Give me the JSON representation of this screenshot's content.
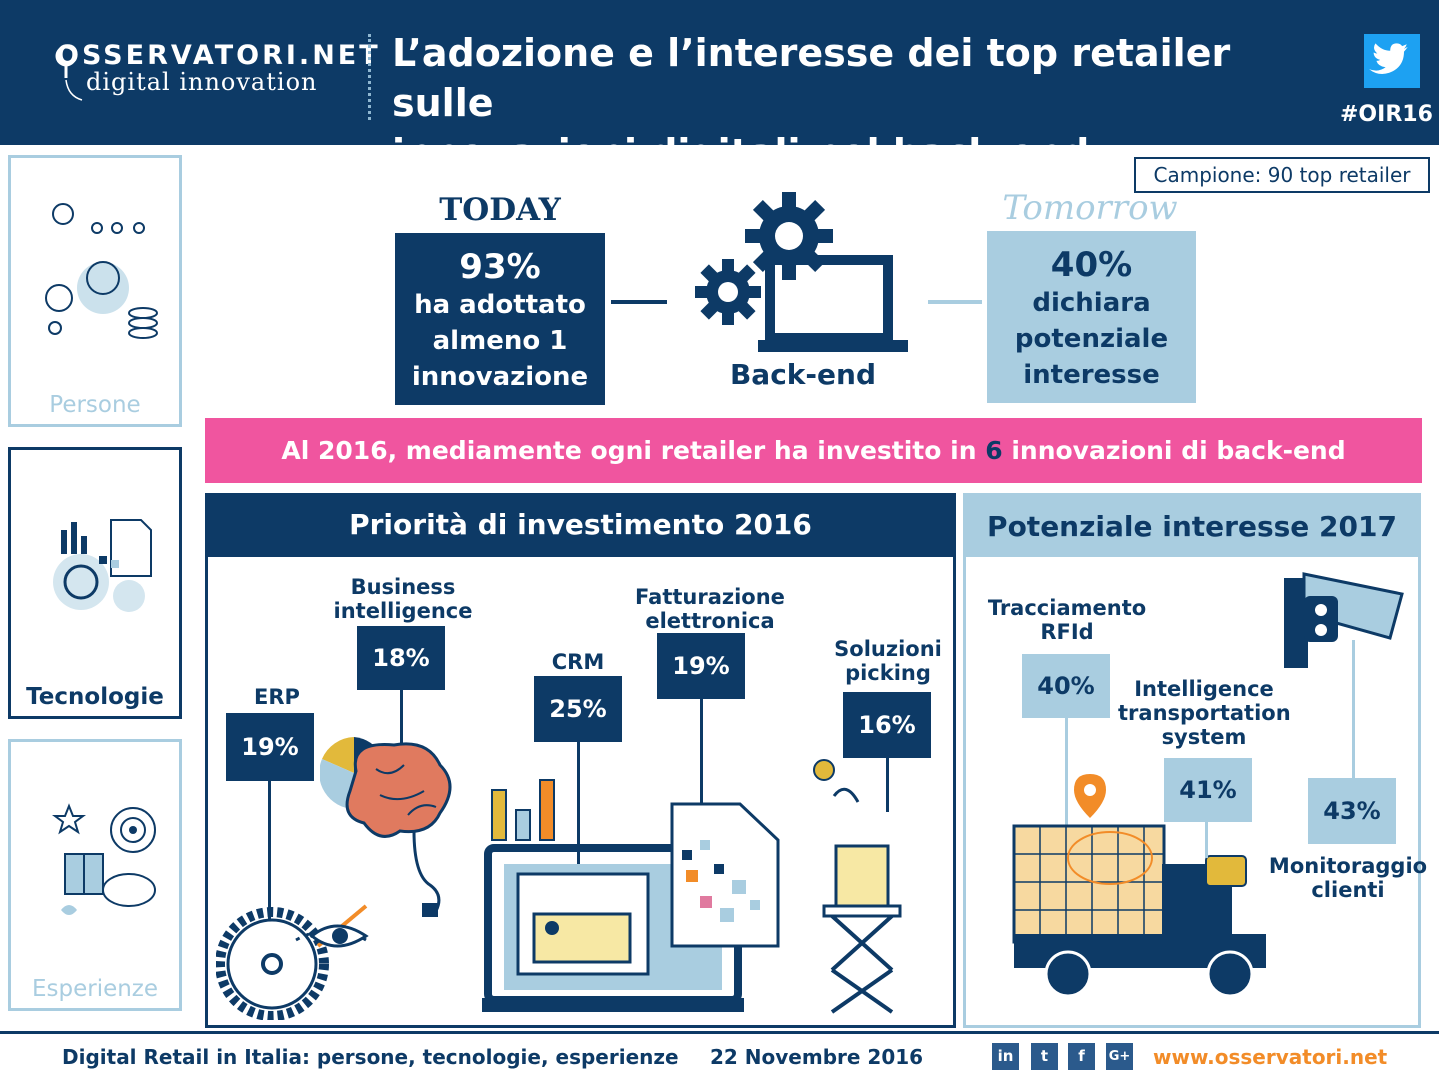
{
  "header": {
    "logo_main": "OSSERVATORI.NET",
    "logo_sub": "digital innovation",
    "title_line1": "L’adozione e l’interesse dei top retailer sulle",
    "title_line2": "innovazioni digitali nel back-end",
    "hashtag": "#OIR16"
  },
  "sidebar": {
    "items": [
      {
        "label": "Persone",
        "icon": "people-icon"
      },
      {
        "label": "Tecnologie",
        "icon": "technology-icon"
      },
      {
        "label": "Esperienze",
        "icon": "experiences-icon"
      }
    ]
  },
  "sample": "Campione: 90 top retailer",
  "today": {
    "title": "TODAY",
    "value": "93%",
    "line1": "ha adottato",
    "line2": "almeno 1",
    "line3": "innovazione"
  },
  "center": {
    "label": "Back-end"
  },
  "tomorrow": {
    "title": "Tomorrow",
    "value": "40%",
    "line1": "dichiara",
    "line2": "potenziale",
    "line3": "interesse"
  },
  "banner": {
    "before": "Al 2016, mediamente ogni retailer ha investito in ",
    "number": "6",
    "after": " innovazioni di back-end"
  },
  "priority": {
    "title": "Priorità di investimento 2016",
    "items": [
      {
        "label": "ERP",
        "value": "19%"
      },
      {
        "label_line1": "Business",
        "label_line2": "intelligence",
        "value": "18%"
      },
      {
        "label": "CRM",
        "value": "25%"
      },
      {
        "label_line1": "Fatturazione",
        "label_line2": "elettronica",
        "value": "19%"
      },
      {
        "label_line1": "Soluzioni",
        "label_line2": "picking",
        "value": "16%"
      }
    ]
  },
  "interest": {
    "title": "Potenziale interesse 2017",
    "items": [
      {
        "label_line1": "Tracciamento",
        "label_line2": "RFId",
        "value": "40%"
      },
      {
        "label_line1": "Intelligence",
        "label_line2": "transportation",
        "label_line3": "system",
        "value": "41%"
      },
      {
        "label_line1": "Monitoraggio",
        "label_line2": "clienti",
        "value": "43%"
      }
    ]
  },
  "footer": {
    "left": "Digital Retail in Italia: persone, tecnologie, esperienze",
    "date": "22 Novembre 2016",
    "url": "www.osservatori.net",
    "social": [
      "in",
      "t",
      "f",
      "G+"
    ]
  },
  "colors": {
    "navy": "#0d3a66",
    "light_blue": "#a9cde0",
    "pink": "#f0559f",
    "orange": "#f28c28",
    "twitter": "#1da1f2"
  }
}
